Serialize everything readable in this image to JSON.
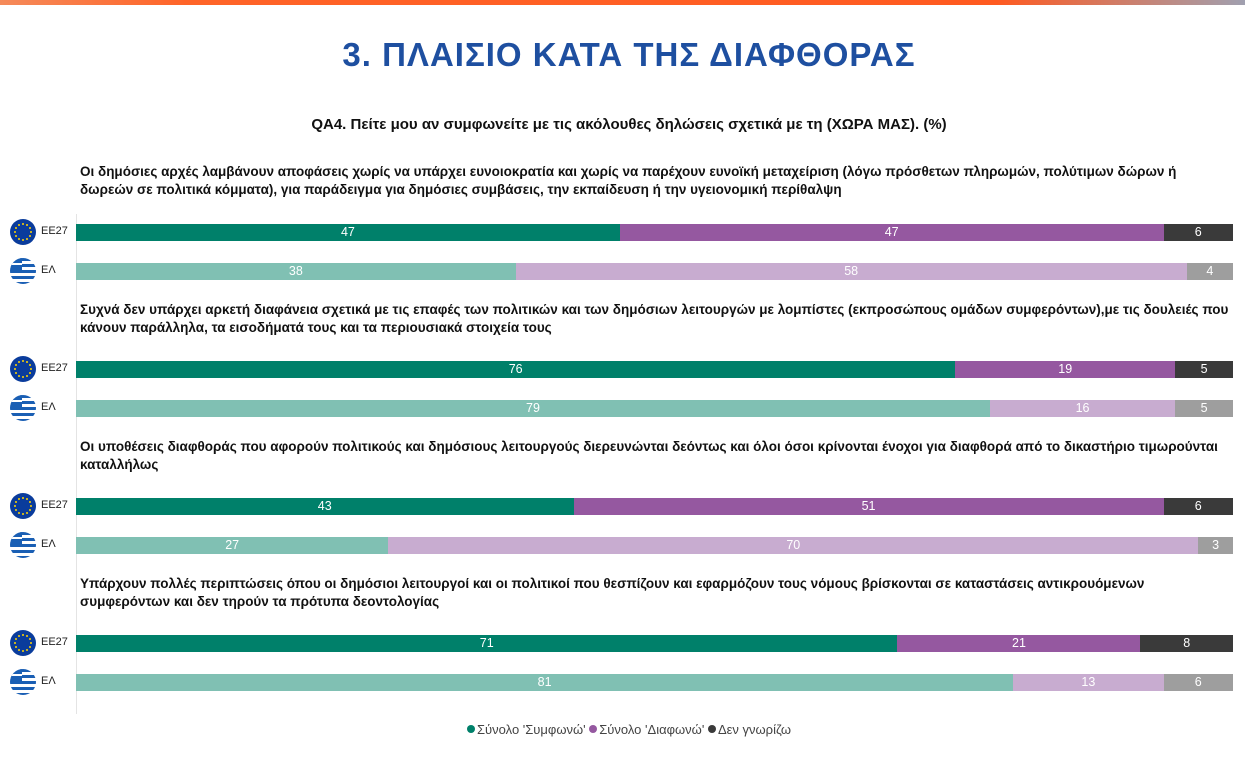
{
  "title": "3. ΠΛΑΙΣΙΟ ΚΑΤΑ ΤΗΣ ΔΙΑΦΘΟΡΑΣ",
  "chart_data": {
    "type": "bar",
    "orientation": "horizontal-stacked-100",
    "title": "QA4. Πείτε μου αν συμφωνείτε με τις ακόλουθες δηλώσεις σχετικά με τη (ΧΩΡΑ ΜΑΣ). (%)",
    "series_names": [
      "Σύνολο 'Συμφωνώ'",
      "Σύνολο 'Διαφωνώ'",
      "Δεν γνωρίζω"
    ],
    "colors": {
      "EE27": [
        "#00806a",
        "#9558a0",
        "#3a3a3a"
      ],
      "ΕΛ": [
        "#80c0b3",
        "#c8acd0",
        "#9e9e9e"
      ]
    },
    "legend_position": "bottom",
    "groups": [
      {
        "statement": "Οι δημόσιες αρχές λαμβάνουν αποφάσεις χωρίς να υπάρχει ευνοιοκρατία και χωρίς να παρέχουν ευνοϊκή μεταχείριση (λόγω πρόσθετων πληρωμών, πολύτιμων δώρων ή δωρεών σε πολιτικά κόμματα), για παράδειγμα για δημόσιες συμβάσεις, την εκπαίδευση ή την υγειονομική περίθαλψη",
        "rows": [
          {
            "label": "EE27",
            "values": [
              47,
              47,
              6
            ]
          },
          {
            "label": "ΕΛ",
            "values": [
              38,
              58,
              4
            ]
          }
        ]
      },
      {
        "statement": "Συχνά δεν υπάρχει αρκετή διαφάνεια σχετικά με τις επαφές των πολιτικών και των δημόσιων λειτουργών με λομπίστες (εκπροσώπους ομάδων συμφερόντων),με τις δουλειές που κάνουν παράλληλα, τα εισοδήματά τους και τα περιουσιακά στοιχεία τους",
        "rows": [
          {
            "label": "EE27",
            "values": [
              76,
              19,
              5
            ]
          },
          {
            "label": "ΕΛ",
            "values": [
              79,
              16,
              5
            ]
          }
        ]
      },
      {
        "statement": "Οι υποθέσεις διαφθοράς που αφορούν πολιτικούς και δημόσιους λειτουργούς διερευνώνται δεόντως και όλοι όσοι κρίνονται ένοχοι για διαφθορά από το δικαστήριο τιμωρούνται καταλλήλως",
        "rows": [
          {
            "label": "EE27",
            "values": [
              43,
              51,
              6
            ]
          },
          {
            "label": "ΕΛ",
            "values": [
              27,
              70,
              3
            ]
          }
        ]
      },
      {
        "statement": "Υπάρχουν πολλές περιπτώσεις όπου οι δημόσιοι λειτουργοί και οι πολιτικοί που θεσπίζουν και εφαρμόζουν τους νόμους βρίσκονται σε καταστάσεις αντικρουόμενων συμφερόντων και δεν τηρούν τα πρότυπα δεοντολογίας",
        "rows": [
          {
            "label": "EE27",
            "values": [
              71,
              21,
              8
            ]
          },
          {
            "label": "ΕΛ",
            "values": [
              81,
              13,
              6
            ]
          }
        ]
      }
    ]
  }
}
